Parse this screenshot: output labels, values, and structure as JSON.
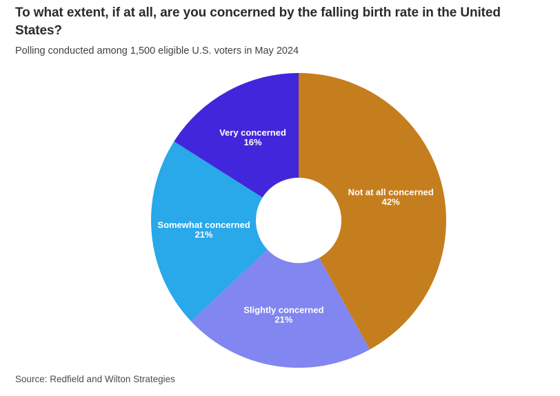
{
  "header": {
    "title": "To what extent, if at all, are you concerned by the falling birth rate in the United States?",
    "subtitle": "Polling conducted among 1,500 eligible U.S. voters in May 2024"
  },
  "chart_data": {
    "type": "pie",
    "style": "donut",
    "start_angle_deg": 0,
    "direction": "clockwise",
    "inner_radius_ratio": 0.29,
    "categories": [
      "Not at all concerned",
      "Slightly concerned",
      "Somewhat concerned",
      "Very concerned"
    ],
    "values": [
      42,
      21,
      21,
      16
    ],
    "unit": "%",
    "colors": [
      "#C57E1D",
      "#8186F0",
      "#29A8EA",
      "#4226DB"
    ],
    "label_color": "#ffffff",
    "legend": "none",
    "data_labels": "inside"
  },
  "footer": {
    "source": "Source: Redfield and Wilton Strategies"
  }
}
